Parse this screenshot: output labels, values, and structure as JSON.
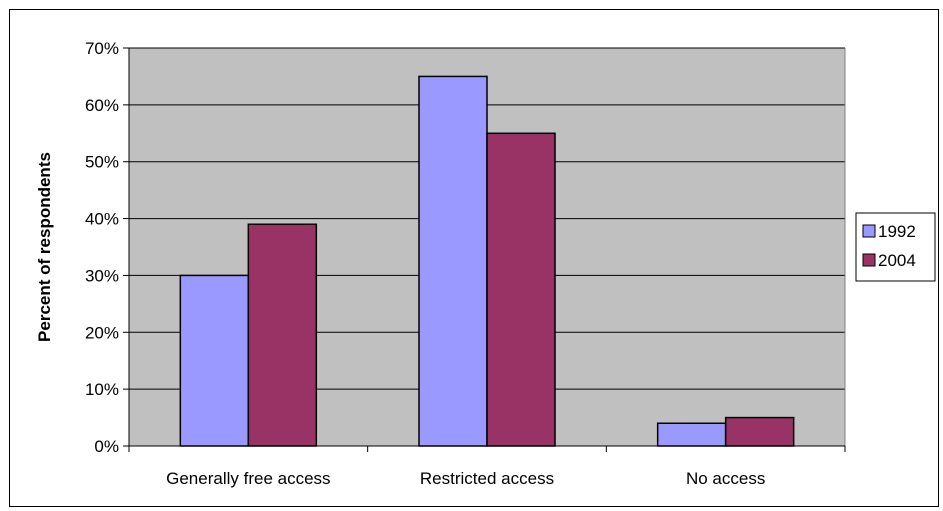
{
  "chart_data": {
    "type": "bar",
    "title": "",
    "xlabel": "",
    "ylabel": "Percent of respondents",
    "categories": [
      "Generally free access",
      "Restricted access",
      "No access"
    ],
    "series": [
      {
        "name": "1992",
        "values": [
          30,
          65,
          4
        ],
        "color": "#9999FF"
      },
      {
        "name": "2004",
        "values": [
          39,
          55,
          5
        ],
        "color": "#993366"
      }
    ],
    "ylim": [
      0,
      70
    ],
    "y_ticks": [
      0,
      10,
      20,
      30,
      40,
      50,
      60,
      70
    ],
    "y_tick_labels": [
      "0%",
      "10%",
      "20%",
      "30%",
      "40%",
      "50%",
      "60%",
      "70%"
    ],
    "grid": true,
    "plot_background": "#C0C0C0",
    "legend_position": "right"
  }
}
